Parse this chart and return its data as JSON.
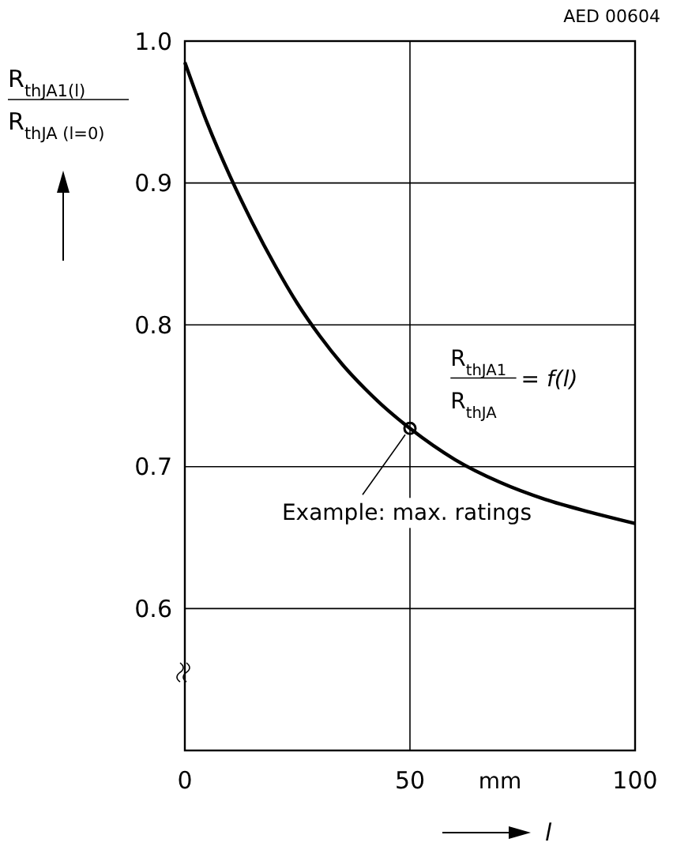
{
  "chart_data": {
    "type": "line",
    "xlabel": "l",
    "ylabel": "R$_{thJA1(l)}$\nR$_{thJA (l=0)}$",
    "xlim": [
      0,
      100
    ],
    "xticks": [
      0,
      50,
      100
    ],
    "ylim": [
      0.5,
      1.0
    ],
    "yticks": [
      {
        "value": 0.5,
        "label": null
      },
      0.6,
      0.7,
      0.8,
      0.9,
      {
        "value": 1.0,
        "label": "1.0"
      }
    ],
    "grid": true,
    "series": [
      {
        "color": "#000000",
        "marker": "none",
        "x": [
          0,
          5,
          10,
          15,
          20,
          25,
          30,
          35,
          40,
          45,
          50,
          60,
          70,
          80,
          90,
          100
        ],
        "values": [
          0.985,
          0.942,
          0.905,
          0.872,
          0.842,
          0.815,
          0.792,
          0.772,
          0.755,
          0.74,
          0.727,
          0.705,
          0.689,
          0.677,
          0.668,
          0.66
        ]
      },
      {
        "type": "scatter",
        "color": "#000000",
        "marker": "circle",
        "x": [
          50
        ],
        "values": [
          0.727
        ]
      }
    ],
    "annotations": [
      "AED 00604",
      "mm",
      "R$_{thJA1}$\nR$_{thJA}$\n= f(l)",
      {
        "text": "Example: max. ratings",
        "x": 50,
        "y": 0.727
      }
    ]
  }
}
